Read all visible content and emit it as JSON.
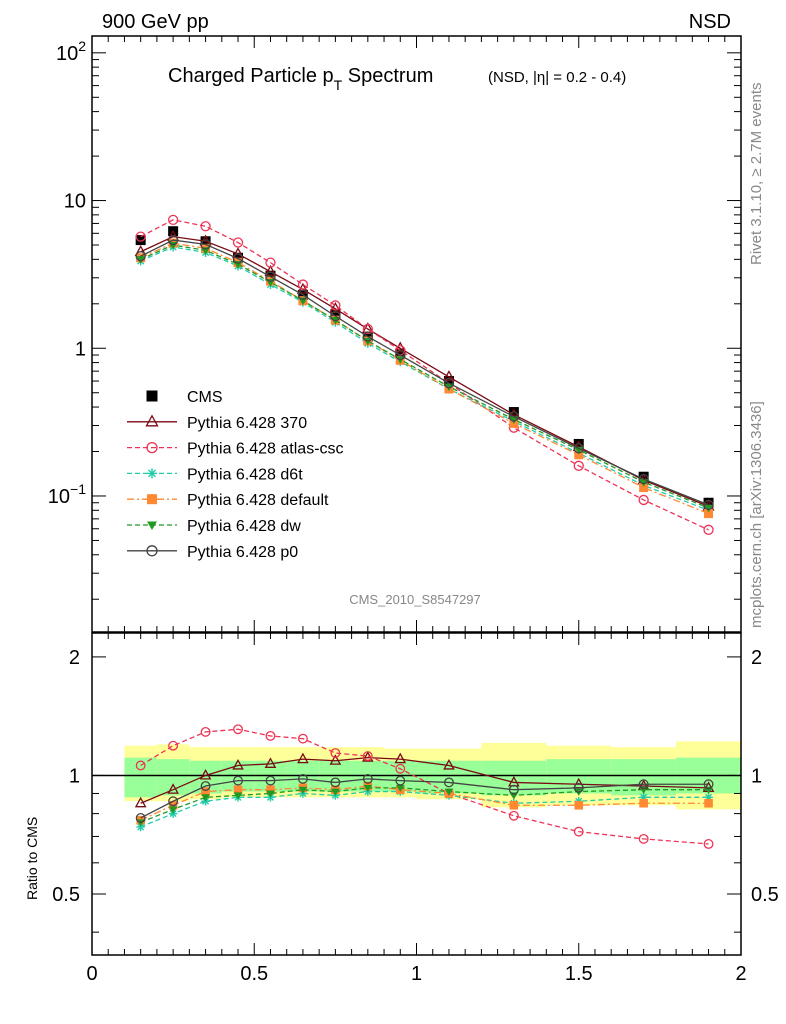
{
  "header": {
    "left": "900 GeV pp",
    "right": "NSD"
  },
  "side_labels": {
    "top": "Rivet 3.1.10, ≥ 2.7M events",
    "bottom": "mcplots.cern.ch [arXiv:1306.3436]"
  },
  "title": {
    "main": "Charged Particle p",
    "sub": "T",
    "main2": " Spectrum",
    "small": "(NSD, |η| = 0.2 - 0.4)"
  },
  "watermark": "CMS_2010_S8547297",
  "ratio_ylabel": "Ratio to CMS",
  "top_ticks": [
    {
      "pos": 100,
      "base": "10",
      "exp": "2"
    },
    {
      "pos": 10,
      "base": "10",
      "exp": ""
    },
    {
      "pos": 1,
      "base": "1",
      "exp": ""
    },
    {
      "pos": 0.1,
      "base": "10",
      "exp": "−1"
    }
  ],
  "ratio_ticks": [
    {
      "pos": 2,
      "label": "2"
    },
    {
      "pos": 1,
      "label": "1"
    },
    {
      "pos": 0.5,
      "label": "0.5"
    }
  ],
  "x_ticks": [
    {
      "pos": 0,
      "label": "0"
    },
    {
      "pos": 0.5,
      "label": "0.5"
    },
    {
      "pos": 1,
      "label": "1"
    },
    {
      "pos": 1.5,
      "label": "1.5"
    },
    {
      "pos": 2,
      "label": "2"
    }
  ],
  "chart_data": {
    "type": "scatter",
    "xlim": [
      0,
      2
    ],
    "ylim_top": [
      0.012,
      130
    ],
    "log_y_top": true,
    "ylim_ratio": [
      0.35,
      2.3
    ],
    "log_y_ratio": true,
    "legend_position": "left-middle",
    "x": [
      0.15,
      0.25,
      0.35,
      0.45,
      0.55,
      0.65,
      0.75,
      0.85,
      0.95,
      1.1,
      1.3,
      1.5,
      1.7,
      1.9
    ],
    "bins": [
      [
        0.1,
        0.2
      ],
      [
        0.2,
        0.3
      ],
      [
        0.3,
        0.4
      ],
      [
        0.4,
        0.5
      ],
      [
        0.5,
        0.6
      ],
      [
        0.6,
        0.7
      ],
      [
        0.7,
        0.8
      ],
      [
        0.8,
        0.9
      ],
      [
        0.9,
        1.0
      ],
      [
        1.0,
        1.2
      ],
      [
        1.2,
        1.4
      ],
      [
        1.4,
        1.6
      ],
      [
        1.6,
        1.8
      ],
      [
        1.8,
        2.0
      ]
    ],
    "band_inner": [
      [
        0.88,
        1.11
      ],
      [
        0.89,
        1.1
      ],
      [
        0.9,
        1.09
      ],
      [
        0.91,
        1.09
      ],
      [
        0.91,
        1.09
      ],
      [
        0.91,
        1.09
      ],
      [
        0.91,
        1.09
      ],
      [
        0.91,
        1.09
      ],
      [
        0.91,
        1.09
      ],
      [
        0.9,
        1.09
      ],
      [
        0.89,
        1.09
      ],
      [
        0.9,
        1.1
      ],
      [
        0.89,
        1.1
      ],
      [
        0.9,
        1.11
      ]
    ],
    "band_outer": [
      [
        0.86,
        1.19
      ],
      [
        0.86,
        1.2
      ],
      [
        0.87,
        1.18
      ],
      [
        0.88,
        1.18
      ],
      [
        0.88,
        1.18
      ],
      [
        0.88,
        1.18
      ],
      [
        0.88,
        1.18
      ],
      [
        0.88,
        1.18
      ],
      [
        0.88,
        1.17
      ],
      [
        0.87,
        1.17
      ],
      [
        0.83,
        1.21
      ],
      [
        0.84,
        1.19
      ],
      [
        0.84,
        1.18
      ],
      [
        0.82,
        1.22
      ]
    ],
    "series": [
      {
        "name": "CMS",
        "color": "#000000",
        "marker": "square-filled",
        "line": "none",
        "values": [
          5.4,
          6.2,
          5.3,
          4.1,
          3.1,
          2.3,
          1.7,
          1.2,
          0.92,
          0.6,
          0.37,
          0.225,
          0.135,
          0.09
        ],
        "ratio": null
      },
      {
        "name": "Pythia 6.428 370",
        "color": "#7a0a14",
        "marker": "triangle-open",
        "line": "solid",
        "values": [
          4.5,
          5.7,
          5.3,
          4.35,
          3.3,
          2.5,
          1.85,
          1.35,
          1.0,
          0.64,
          0.355,
          0.215,
          0.128,
          0.085
        ],
        "ratio": [
          0.85,
          0.92,
          1.0,
          1.06,
          1.07,
          1.1,
          1.09,
          1.11,
          1.1,
          1.06,
          0.96,
          0.95,
          0.94,
          0.93
        ]
      },
      {
        "name": "Pythia 6.428 atlas-csc",
        "color": "#ee3355",
        "marker": "circle-open",
        "line": "dashed",
        "values": [
          5.7,
          7.4,
          6.7,
          5.2,
          3.8,
          2.7,
          1.95,
          1.35,
          0.97,
          0.58,
          0.29,
          0.16,
          0.094,
          0.059
        ],
        "ratio": [
          1.06,
          1.19,
          1.29,
          1.31,
          1.26,
          1.24,
          1.14,
          1.12,
          1.04,
          0.9,
          0.79,
          0.72,
          0.69,
          0.67
        ]
      },
      {
        "name": "Pythia 6.428 d6t",
        "color": "#22ccaa",
        "marker": "star",
        "line": "dashed",
        "values": [
          3.9,
          4.85,
          4.45,
          3.6,
          2.7,
          2.05,
          1.5,
          1.08,
          0.81,
          0.53,
          0.32,
          0.195,
          0.118,
          0.08
        ],
        "ratio": [
          0.74,
          0.8,
          0.86,
          0.88,
          0.88,
          0.9,
          0.89,
          0.91,
          0.91,
          0.89,
          0.85,
          0.86,
          0.88,
          0.88
        ]
      },
      {
        "name": "Pythia 6.428 default",
        "color": "#ff8833",
        "marker": "square-filled",
        "line": "dashdot",
        "values": [
          4.1,
          5.15,
          4.75,
          3.8,
          2.85,
          2.1,
          1.55,
          1.12,
          0.83,
          0.53,
          0.31,
          0.19,
          0.114,
          0.076
        ],
        "ratio": [
          0.77,
          0.84,
          0.91,
          0.92,
          0.92,
          0.93,
          0.92,
          0.94,
          0.92,
          0.9,
          0.84,
          0.84,
          0.85,
          0.85
        ]
      },
      {
        "name": "Pythia 6.428 dw",
        "color": "#229922",
        "marker": "triangle-down-filled",
        "line": "dashed",
        "values": [
          4.0,
          5.0,
          4.6,
          3.7,
          2.8,
          2.1,
          1.55,
          1.12,
          0.84,
          0.55,
          0.33,
          0.205,
          0.124,
          0.083
        ],
        "ratio": [
          0.76,
          0.82,
          0.88,
          0.89,
          0.9,
          0.92,
          0.91,
          0.93,
          0.93,
          0.91,
          0.89,
          0.91,
          0.92,
          0.92
        ]
      },
      {
        "name": "Pythia 6.428 p0",
        "color": "#444444",
        "marker": "circle-open",
        "line": "solid",
        "values": [
          4.2,
          5.4,
          5.05,
          4.05,
          3.05,
          2.3,
          1.65,
          1.2,
          0.9,
          0.58,
          0.345,
          0.21,
          0.13,
          0.087
        ],
        "ratio": [
          0.78,
          0.86,
          0.94,
          0.97,
          0.97,
          0.98,
          0.96,
          0.98,
          0.97,
          0.96,
          0.92,
          0.93,
          0.95,
          0.95
        ]
      }
    ]
  }
}
